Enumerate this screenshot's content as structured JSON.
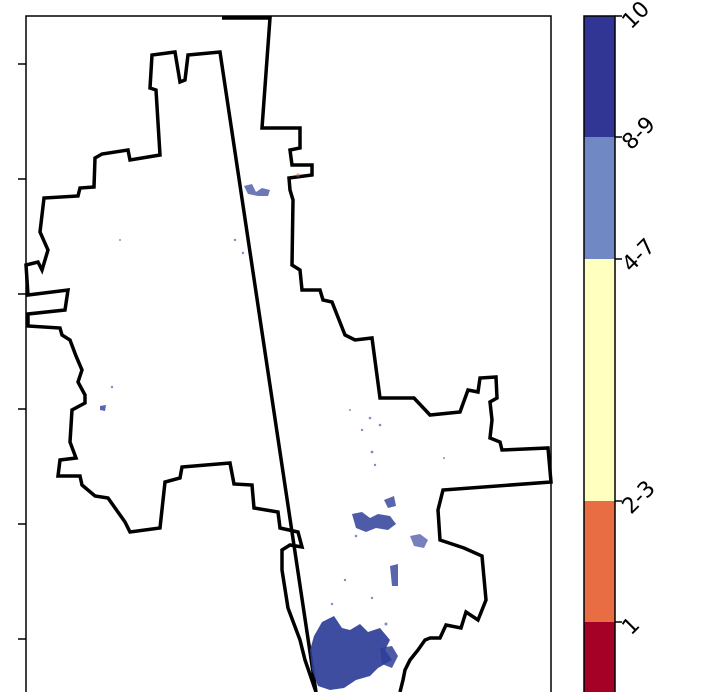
{
  "map": {
    "boundary_color": "#000000",
    "cluster_color": "#2f3e99"
  },
  "legend": {
    "bins": [
      {
        "label": "1",
        "color": "#a50026"
      },
      {
        "label": "2-3",
        "color": "#e86d43"
      },
      {
        "label": "4-7",
        "color": "#ffffbf"
      },
      {
        "label": "8-9",
        "color": "#7088c4"
      },
      {
        "label": "10",
        "color": "#313695"
      }
    ]
  }
}
